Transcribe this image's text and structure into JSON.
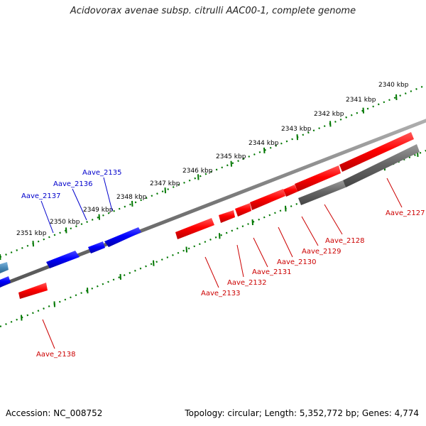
{
  "title": "Acidovorax avenae subsp. citrulli AAC00-1, complete genome",
  "footer": {
    "accession": "Accession: NC_008752",
    "topology": "Topology: circular; Length: 5,352,772 bp; Genes: 4,774"
  },
  "colors": {
    "strand_plus": "#ff0000",
    "strand_minus": "#0000ff",
    "pseudogene": "#666666",
    "partial": "#4a8ab8",
    "backbone": "#777777",
    "ticks": "#007700",
    "label_plus": "#cc0000",
    "label_minus": "#0000cc"
  },
  "scale_labels": [
    "2340 kbp",
    "2341 kbp",
    "2342 kbp",
    "2343 kbp",
    "2344 kbp",
    "2345 kbp",
    "2346 kbp",
    "2347 kbp",
    "2348 kbp",
    "2349 kbp",
    "2350 kbp",
    "2351 kbp"
  ],
  "gene_labels": {
    "minus": [
      "Aave_2135",
      "Aave_2136",
      "Aave_2137"
    ],
    "plus": [
      "Aave_2127",
      "Aave_2128",
      "Aave_2129",
      "Aave_2130",
      "Aave_2131",
      "Aave_2132",
      "Aave_2133",
      "Aave_2138"
    ]
  }
}
